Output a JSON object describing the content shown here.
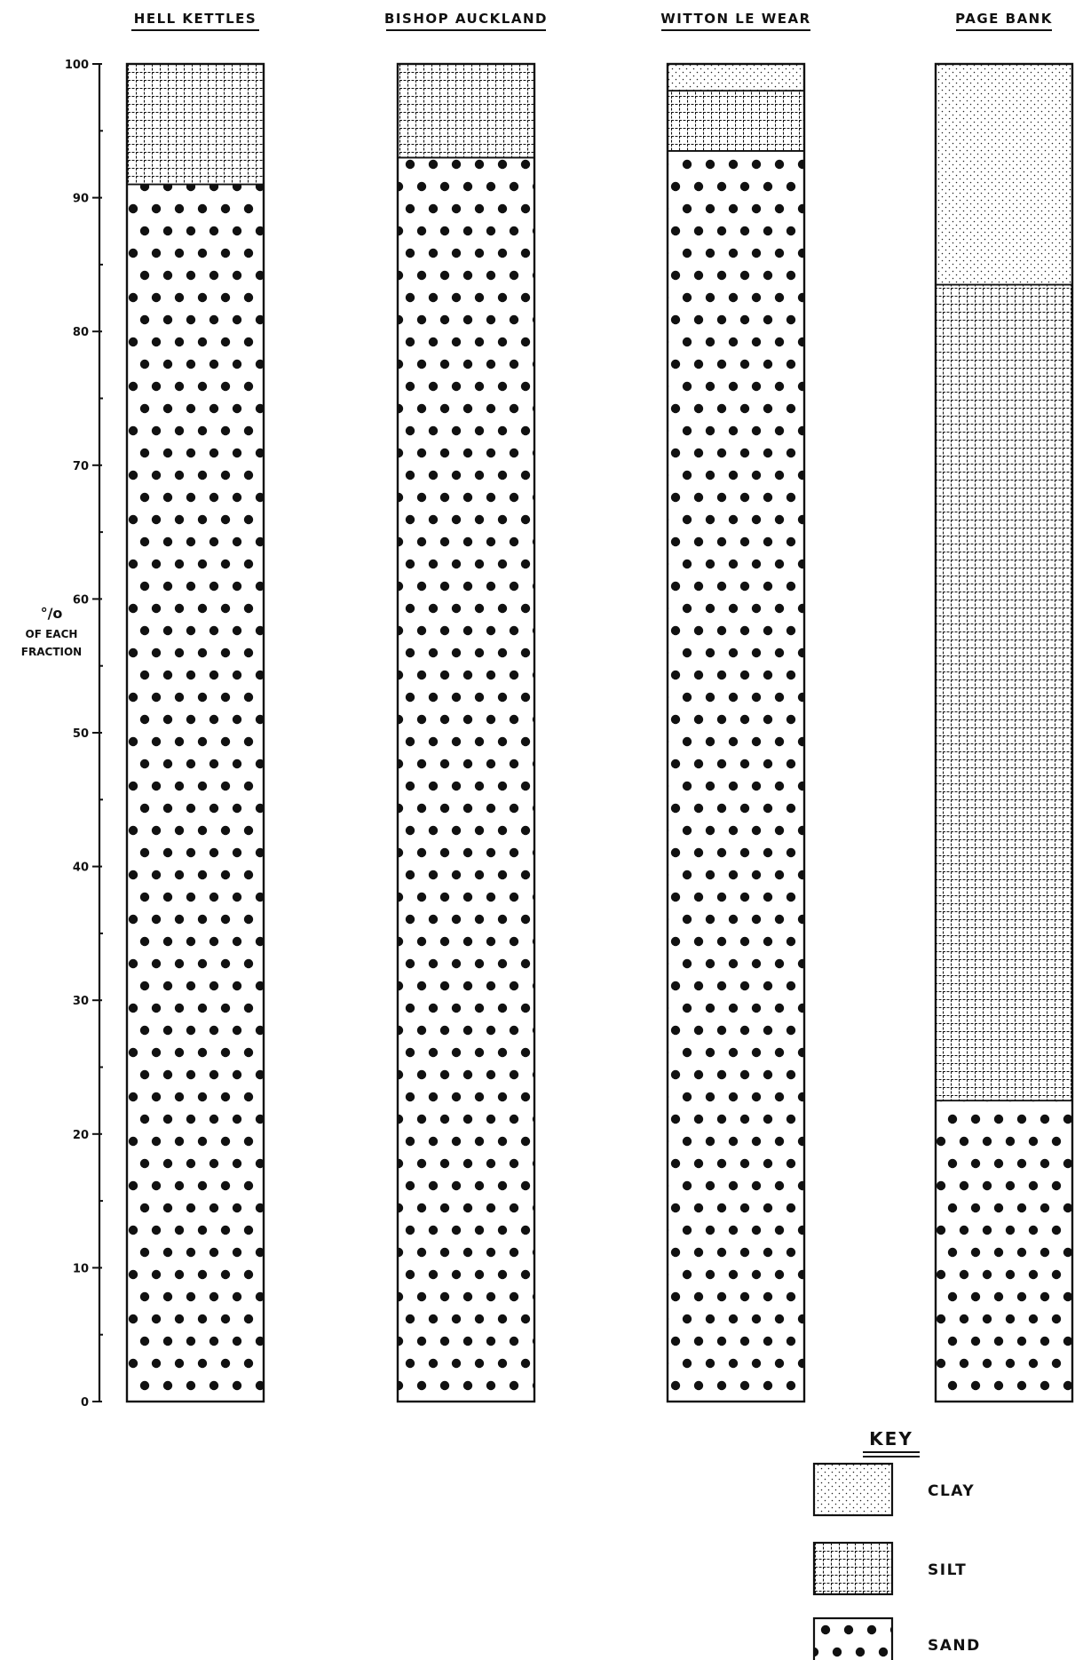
{
  "chart_data": {
    "type": "bar",
    "stacked": true,
    "categories": [
      "HELL KETTLES",
      "BISHOP AUCKLAND",
      "WITTON LE WEAR",
      "PAGE BANK"
    ],
    "series": [
      {
        "name": "SAND",
        "values": [
          91,
          93,
          93.5,
          22.5
        ]
      },
      {
        "name": "SILT",
        "values": [
          9,
          7,
          4.5,
          61
        ]
      },
      {
        "name": "CLAY",
        "values": [
          0,
          0,
          2,
          16.5
        ]
      }
    ],
    "ylabel": "% OF EACH FRACTION",
    "ylabel_lines": [
      "°/o",
      "OF EACH",
      "FRACTION"
    ],
    "ylim": [
      0,
      100
    ],
    "yticks_labeled": [
      0,
      10,
      20,
      30,
      40,
      50,
      60,
      70,
      80,
      90,
      100
    ],
    "ytick_labels": [
      "0",
      "10",
      "20",
      "30",
      "40",
      "50",
      "60",
      "70",
      "80",
      "90",
      "100"
    ],
    "minor_tick_step": 5,
    "grid": false,
    "legend": {
      "title": "KEY",
      "position": "bottom-right",
      "entries": [
        {
          "label": "CLAY",
          "pattern": "fine-dots"
        },
        {
          "label": "SILT",
          "pattern": "grid"
        },
        {
          "label": "SAND",
          "pattern": "large-dots"
        }
      ]
    },
    "colors": {
      "ink": "#111111",
      "paper": "#ffffff"
    }
  }
}
